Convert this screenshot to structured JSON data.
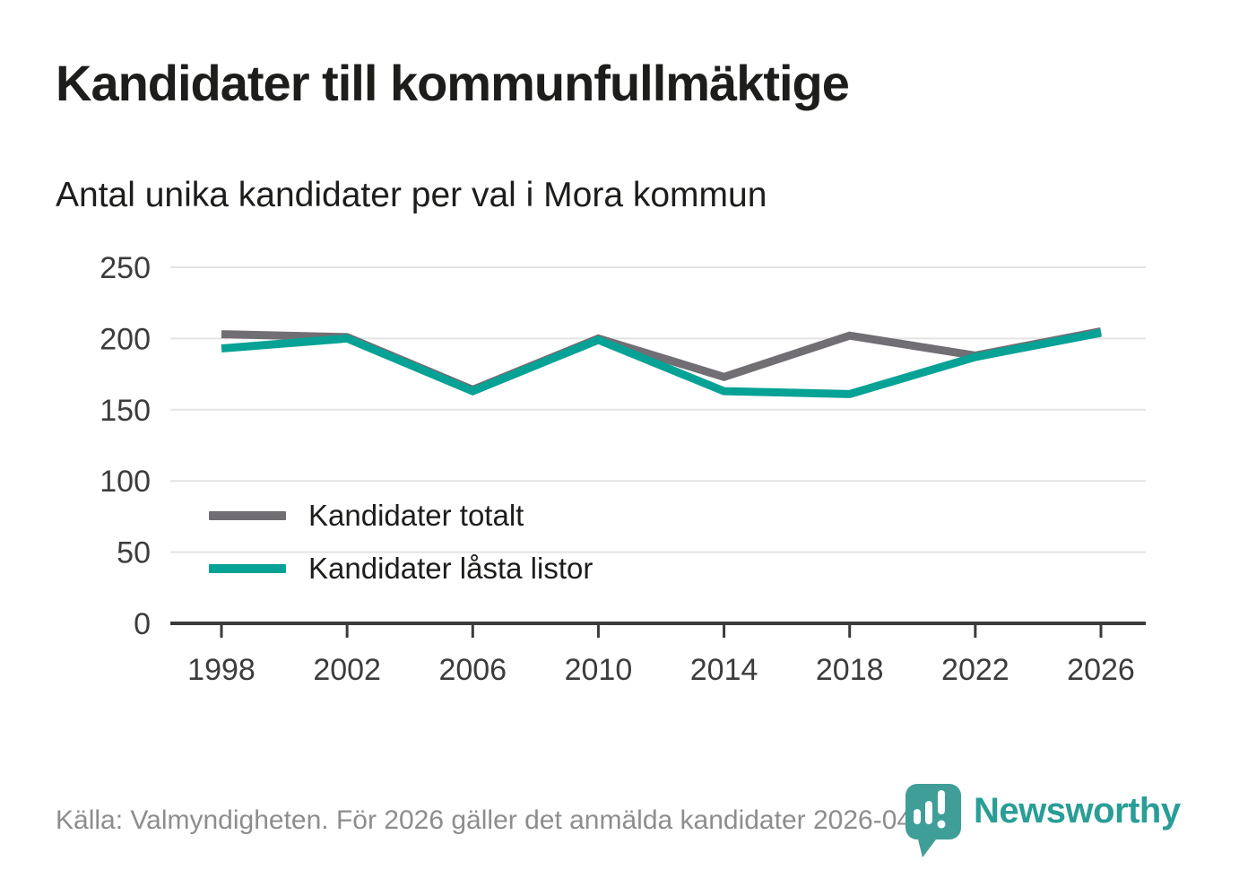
{
  "page": {
    "title": "Kandidater till kommunfullmäktige",
    "subtitle": "Antal unika kandidater per val i Mora kommun"
  },
  "legend": {
    "items": [
      {
        "label": "Kandidater totalt",
        "color": "#716e74"
      },
      {
        "label": "Kandidater låsta listor",
        "color": "#06a296"
      }
    ]
  },
  "footer": {
    "source": "Källa: Valmyndigheten. För 2026 gäller det anmälda kandidater 2026-04-10."
  },
  "logo": {
    "wordmark": "Newsworthy",
    "icon": "newsworthy-pin-barchart-icon",
    "brand_color": "#2a9d97",
    "icon_color": "#3f9e98"
  },
  "colors": {
    "total_line": "#716e74",
    "locked_line": "#06a296",
    "grid": "#e4e4e4",
    "axis": "#3b3b3b",
    "tick_text": "#3c3c3c",
    "title_text": "#1d1d1b",
    "muted_text": "#8d8d8d"
  },
  "chart_data": {
    "type": "line",
    "title": "Kandidater till kommunfullmäktige",
    "subtitle": "Antal unika kandidater per val i Mora kommun",
    "x": [
      1998,
      2002,
      2006,
      2010,
      2014,
      2018,
      2022,
      2026
    ],
    "series": [
      {
        "name": "Kandidater totalt",
        "color": "#716e74",
        "values": [
          203,
          201,
          164,
          200,
          173,
          202,
          188,
          205
        ]
      },
      {
        "name": "Kandidater låsta listor",
        "color": "#06a296",
        "values": [
          193,
          200,
          163,
          199,
          163,
          161,
          187,
          204
        ]
      }
    ],
    "xlabel": "",
    "ylabel": "",
    "ylim": [
      0,
      250
    ],
    "yticks": [
      0,
      50,
      100,
      150,
      200,
      250
    ],
    "grid": true,
    "legend_position": "inside-left-bottom"
  }
}
